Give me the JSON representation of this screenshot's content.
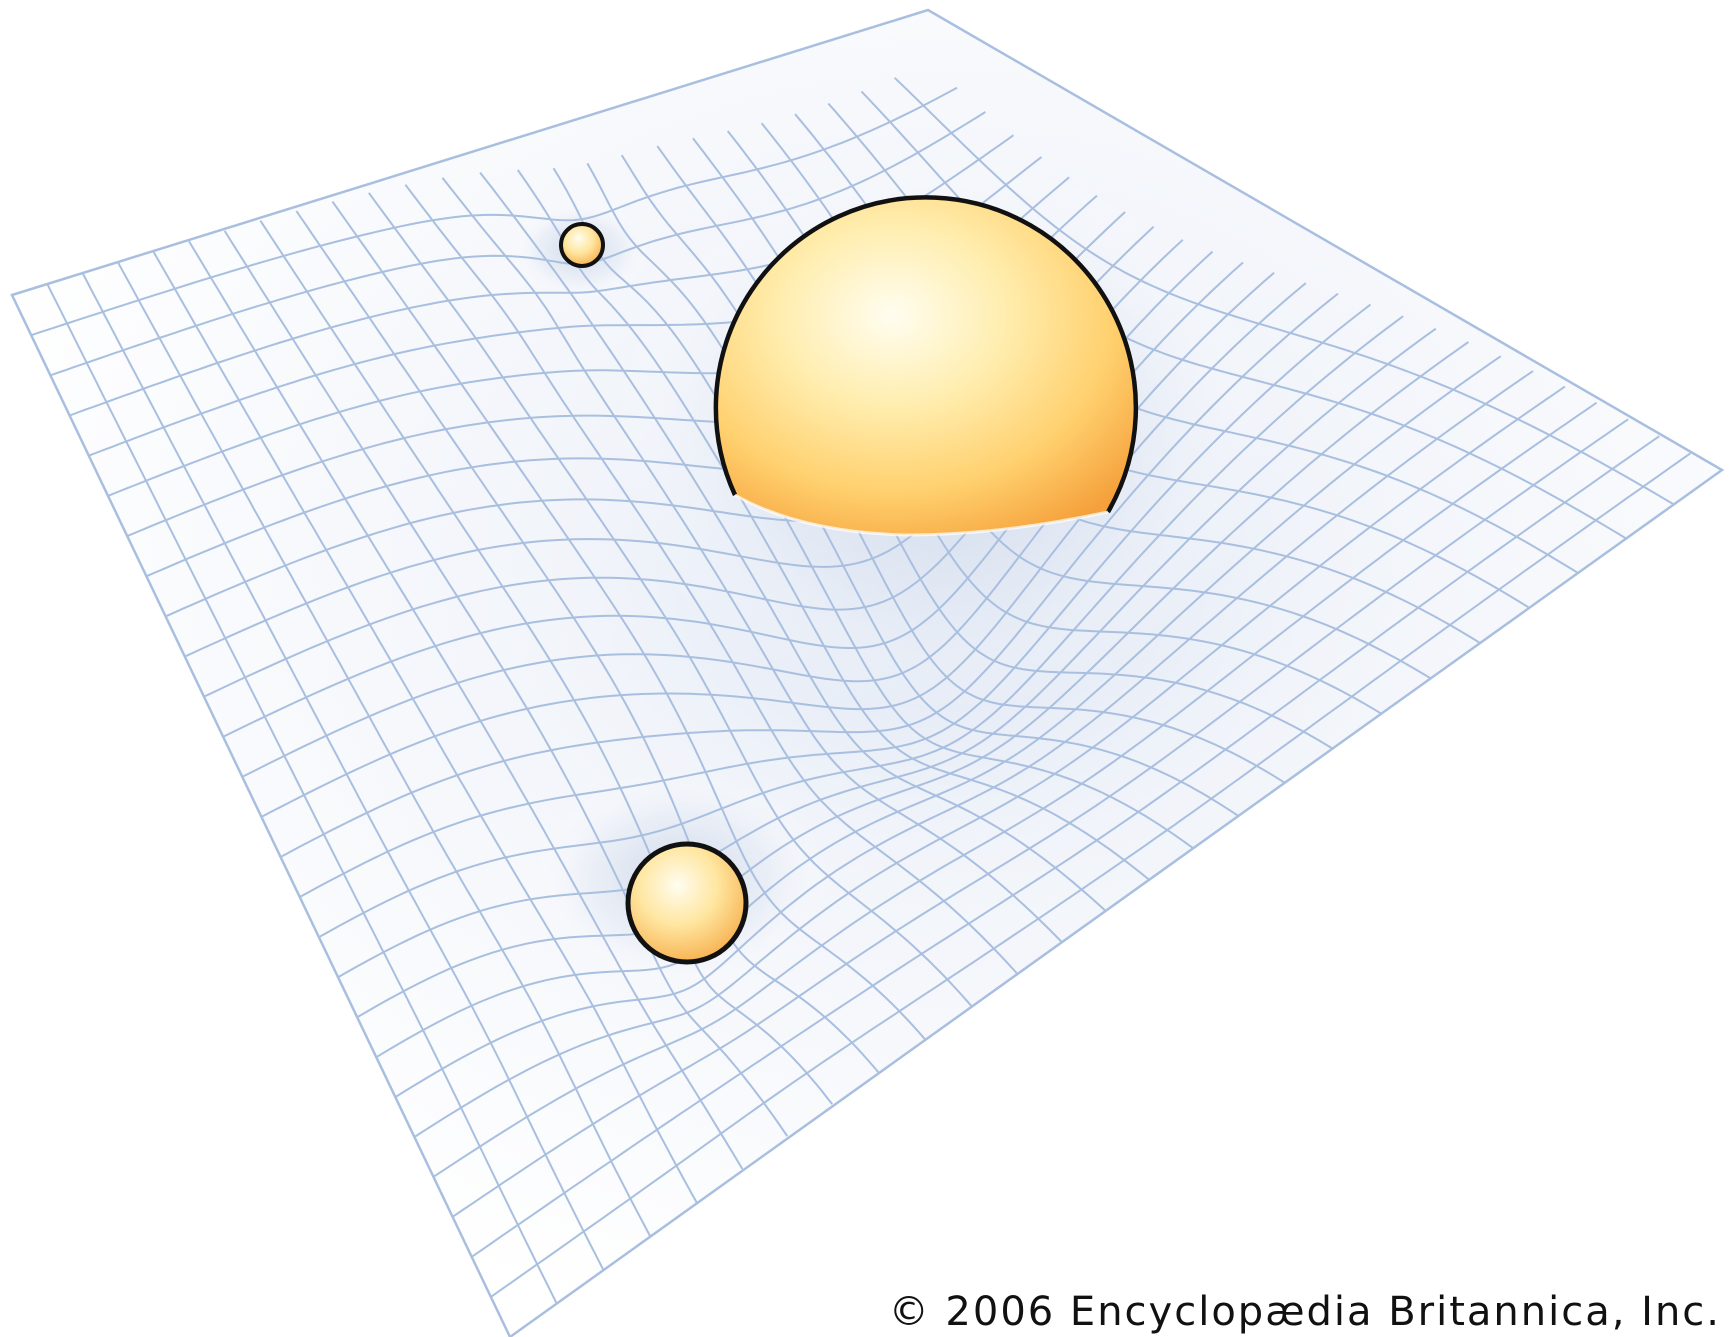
{
  "diagram": {
    "masses": [
      {
        "name": "large-mass"
      },
      {
        "name": "small-mass-top"
      },
      {
        "name": "small-mass-bottom"
      }
    ],
    "colors": {
      "grid_line": "#a9bfe0",
      "sheet_fill_light": "#ffffff",
      "sheet_fill_shade": "#e6ecf7",
      "sphere_highlight": "#fffbe6",
      "sphere_mid": "#ffe08a",
      "sphere_dark": "#f7a53c",
      "outline": "#111111"
    }
  },
  "credit": {
    "copyright": "© 2006 Encyclopædia Britannica, Inc."
  }
}
